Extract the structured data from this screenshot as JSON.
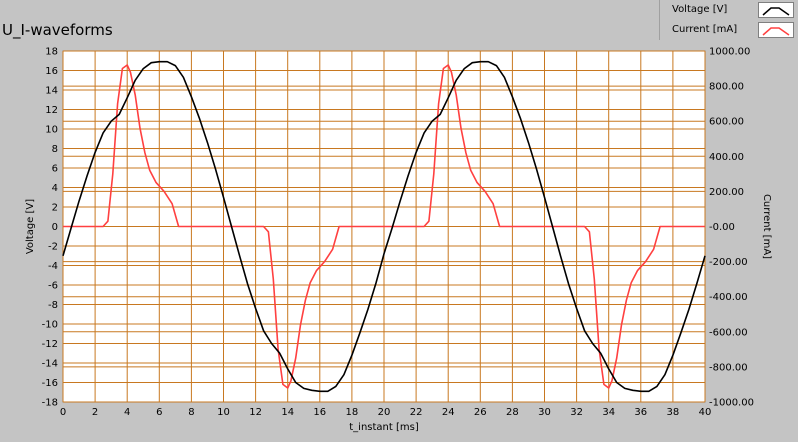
{
  "window": {
    "title": "U_I-waveforms"
  },
  "legend": {
    "items": [
      {
        "label": "Voltage [V]",
        "color": "#000000"
      },
      {
        "label": "Current [mA]",
        "color": "#ff4040"
      }
    ]
  },
  "chart_data": {
    "type": "line",
    "title": "U_I-waveforms",
    "xlabel": "t_instant [ms]",
    "ylabel": "Voltage [V]",
    "y2label": "Current [mA]",
    "xlim": [
      0,
      40
    ],
    "ylim": [
      -18,
      18
    ],
    "y2lim": [
      -1000,
      1000
    ],
    "grid": true,
    "legend_position": "top-right",
    "x_ticks": [
      "0",
      "2",
      "4",
      "6",
      "8",
      "10",
      "12",
      "14",
      "16",
      "18",
      "20",
      "22",
      "24",
      "26",
      "28",
      "30",
      "32",
      "34",
      "36",
      "38",
      "40"
    ],
    "y_ticks": [
      "18",
      "16",
      "14",
      "12",
      "10",
      "8",
      "6",
      "4",
      "2",
      "0",
      "-2",
      "-4",
      "-6",
      "-8",
      "-10",
      "-12",
      "-14",
      "-16",
      "-18"
    ],
    "y2_ticks": [
      "1000.00",
      "800.00",
      "600.00",
      "400.00",
      "200.00",
      "-0.00",
      "-200.00",
      "-400.00",
      "-600.00",
      "-800.00",
      "-1000.00"
    ],
    "series": [
      {
        "name": "Voltage [V]",
        "axis": "left",
        "color": "#000000",
        "x": [
          0,
          0.5,
          1,
          1.5,
          2,
          2.5,
          3,
          3.5,
          4,
          4.5,
          5,
          5.5,
          6,
          6.5,
          7,
          7.5,
          8,
          8.5,
          9,
          9.5,
          10,
          10.5,
          11,
          11.5,
          12,
          12.5,
          13,
          13.5,
          14,
          14.5,
          15,
          15.5,
          16,
          16.5,
          17,
          17.5,
          18,
          18.5,
          19,
          19.5,
          20,
          20.5,
          21,
          21.5,
          22,
          22.5,
          23,
          23.5,
          24,
          24.5,
          25,
          25.5,
          26,
          26.5,
          27,
          27.5,
          28,
          28.5,
          29,
          29.5,
          30,
          30.5,
          31,
          31.5,
          32,
          32.5,
          33,
          33.5,
          34,
          34.5,
          35,
          35.5,
          36,
          36.5,
          37,
          37.5,
          38,
          38.5,
          39,
          39.5,
          40
        ],
        "values": [
          -3.0,
          -0.2,
          2.6,
          5.2,
          7.6,
          9.6,
          10.8,
          11.5,
          13.2,
          15.0,
          16.2,
          16.8,
          16.9,
          16.9,
          16.5,
          15.3,
          13.3,
          11.1,
          8.6,
          5.9,
          3.0,
          0.0,
          -3.0,
          -5.9,
          -8.4,
          -10.7,
          -12.0,
          -13.0,
          -14.6,
          -16.0,
          -16.6,
          -16.8,
          -16.9,
          -16.9,
          -16.4,
          -15.2,
          -13.2,
          -10.9,
          -8.5,
          -5.8,
          -2.8,
          -0.2,
          2.6,
          5.2,
          7.6,
          9.6,
          10.8,
          11.5,
          13.2,
          15.0,
          16.2,
          16.8,
          16.9,
          16.9,
          16.5,
          15.3,
          13.3,
          11.1,
          8.6,
          5.9,
          3.0,
          0.0,
          -3.0,
          -5.9,
          -8.4,
          -10.7,
          -12.0,
          -13.0,
          -14.6,
          -16.0,
          -16.6,
          -16.8,
          -16.9,
          -16.9,
          -16.4,
          -15.2,
          -13.2,
          -10.9,
          -8.5,
          -5.8,
          -3.0
        ]
      },
      {
        "name": "Current [mA]",
        "axis": "right",
        "color": "#ff4040",
        "x": [
          0,
          2.5,
          2.8,
          3.1,
          3.4,
          3.7,
          4.0,
          4.2,
          4.5,
          4.8,
          5.1,
          5.4,
          5.8,
          6.3,
          6.8,
          7.2,
          8,
          10,
          12.5,
          12.8,
          13.1,
          13.4,
          13.7,
          14.0,
          14.2,
          14.5,
          14.8,
          15.1,
          15.4,
          15.8,
          16.3,
          16.8,
          17.2,
          18,
          20,
          22.5,
          22.8,
          23.1,
          23.4,
          23.7,
          24.0,
          24.2,
          24.5,
          24.8,
          25.1,
          25.4,
          25.8,
          26.3,
          26.8,
          27.2,
          28,
          30,
          32.5,
          32.8,
          33.1,
          33.4,
          33.7,
          34.0,
          34.2,
          34.5,
          34.8,
          35.1,
          35.4,
          35.8,
          36.3,
          36.8,
          37.2,
          38,
          40
        ],
        "values": [
          0,
          0,
          30,
          300,
          700,
          900,
          920,
          880,
          750,
          560,
          420,
          320,
          250,
          200,
          130,
          0,
          0,
          0,
          0,
          -30,
          -300,
          -700,
          -900,
          -920,
          -880,
          -750,
          -560,
          -420,
          -320,
          -250,
          -200,
          -130,
          0,
          0,
          0,
          0,
          30,
          300,
          700,
          900,
          920,
          880,
          750,
          560,
          420,
          320,
          250,
          200,
          130,
          0,
          0,
          0,
          0,
          -30,
          -300,
          -700,
          -900,
          -920,
          -880,
          -750,
          -560,
          -420,
          -320,
          -250,
          -200,
          -130,
          0,
          0,
          0
        ]
      }
    ]
  }
}
